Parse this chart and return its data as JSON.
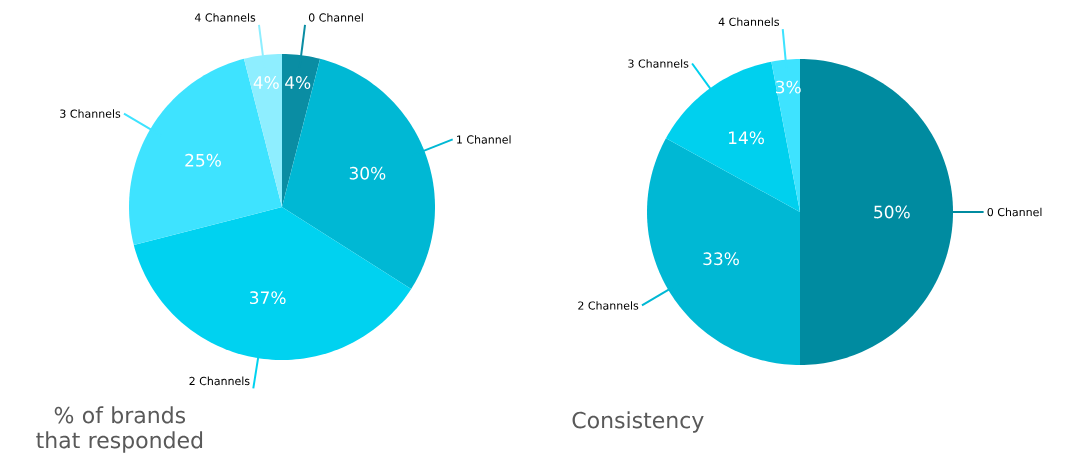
{
  "chart_data": [
    {
      "type": "pie",
      "title": "% of brands that responded",
      "categories": [
        "0 Channel",
        "1 Channel",
        "2 Channels",
        "3 Channels",
        "4 Channels"
      ],
      "values": [
        4,
        30,
        37,
        25,
        4
      ],
      "value_labels": [
        "4%",
        "30%",
        "37%",
        "25%",
        "4%"
      ],
      "colors": [
        "#0a8da3",
        "#00b8d4",
        "#00d2f0",
        "#3ee3ff",
        "#8eeeff"
      ]
    },
    {
      "type": "pie",
      "title": "Consistency",
      "categories": [
        "0 Channel",
        "2 Channels",
        "3 Channels",
        "4 Channels"
      ],
      "values": [
        50,
        33,
        14,
        3
      ],
      "value_labels": [
        "50%",
        "33%",
        "14%",
        "3%"
      ],
      "colors": [
        "#008ba0",
        "#00b8d4",
        "#00d0ee",
        "#3ee3ff"
      ]
    }
  ]
}
